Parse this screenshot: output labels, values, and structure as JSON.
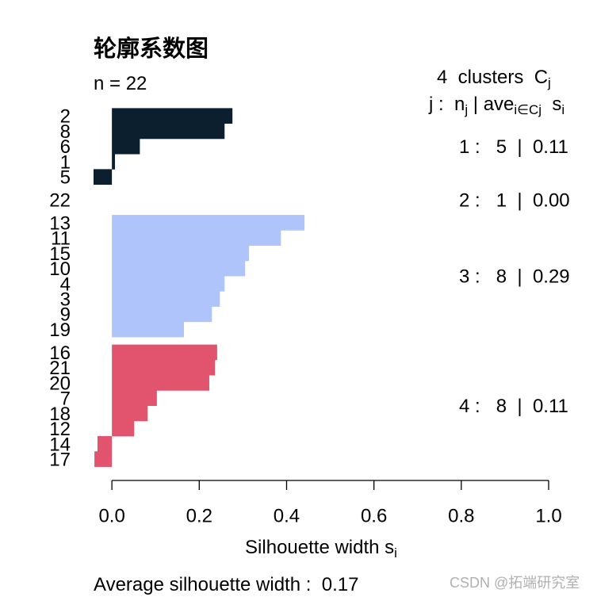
{
  "chart_data": {
    "type": "bar",
    "orientation": "horizontal",
    "title": "轮廓系数图",
    "n_label": "n = 22",
    "cluster_header": {
      "text": "4  clusters  C",
      "sub": "j"
    },
    "stat_header": [
      {
        "text": "j :  n",
        "sub": "j"
      },
      {
        "text": " | ave",
        "sub": "i∈Cj"
      },
      {
        "text": "  s",
        "sub": "i"
      }
    ],
    "clusters": [
      {
        "n": 5,
        "average": 0.11,
        "summary": "1 :   5  |  0.11",
        "color": "#0b1f2e",
        "labels": [
          "2",
          "8",
          "6",
          "1",
          "5"
        ],
        "values": [
          0.276,
          0.258,
          0.064,
          0.007,
          -0.042
        ]
      },
      {
        "n": 1,
        "average": 0.0,
        "summary": "2 :   1  |  0.00",
        "labels": [
          "22"
        ],
        "values": [
          0.0
        ]
      },
      {
        "n": 8,
        "average": 0.29,
        "summary": "3 :   8  |  0.29",
        "color": "#aec4fa",
        "labels": [
          "13",
          "11",
          "15",
          "10",
          "4",
          "3",
          "9",
          "19"
        ],
        "values": [
          0.441,
          0.387,
          0.314,
          0.305,
          0.258,
          0.247,
          0.229,
          0.165
        ]
      },
      {
        "n": 8,
        "average": 0.11,
        "summary": "4 :   8  |  0.11",
        "color": "#e2546e",
        "labels": [
          "16",
          "21",
          "20",
          "7",
          "18",
          "12",
          "14",
          "17"
        ],
        "values": [
          0.241,
          0.236,
          0.223,
          0.103,
          0.082,
          0.051,
          -0.033,
          -0.04
        ]
      }
    ],
    "xlabel": {
      "text": "Silhouette width s",
      "sub": "i"
    },
    "xlim": [
      -0.042,
      1.0
    ],
    "xticks": {
      "values": [
        0,
        0.2,
        0.4,
        0.6,
        0.8,
        1.0
      ],
      "labels": [
        "0.0",
        "0.2",
        "0.4",
        "0.6",
        "0.8",
        "1.0"
      ]
    },
    "grid": false,
    "average_text": "Average silhouette width :  0.17"
  },
  "watermark": "CSDN @拓端研究室"
}
